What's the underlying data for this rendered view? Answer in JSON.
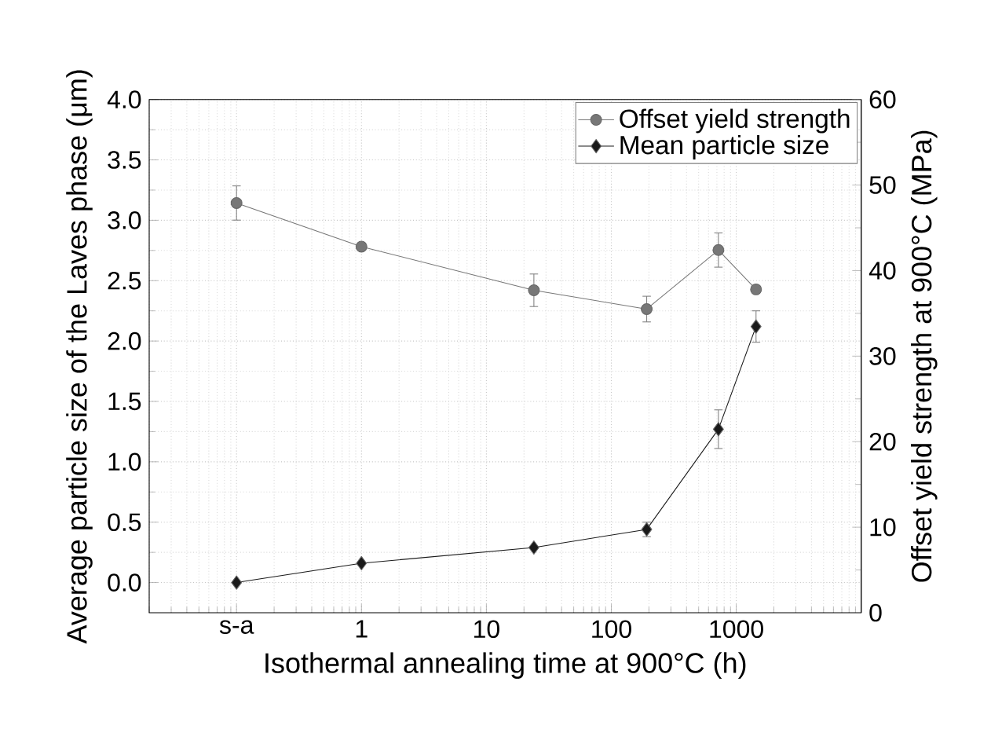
{
  "chart_data": {
    "type": "line",
    "xlabel": "Isothermal annealing time at 900°C (h)",
    "ylabel": "Average particle size of the Laves phase (μm)",
    "y2label": "Offset yield strength at 900°C (MPa)",
    "log": "x",
    "grid": true,
    "legend": "top right",
    "xlim": [
      0.02,
      10000
    ],
    "xticks": [
      {
        "value": 0.1,
        "label": "s-a"
      },
      1,
      10,
      100,
      1000
    ],
    "ylim": [
      -0.25,
      4.0
    ],
    "yticks": [
      {
        "value": 0,
        "label": "0.0"
      },
      0.5,
      {
        "value": 1,
        "label": "1.0"
      },
      1.5,
      {
        "value": 2,
        "label": "2.0"
      },
      2.5,
      {
        "value": 3,
        "label": "3.0"
      },
      3.5,
      {
        "value": 4,
        "label": "4.0"
      }
    ],
    "y2lim": [
      0,
      60
    ],
    "y2ticks": [
      0,
      10,
      20,
      30,
      40,
      50,
      60
    ],
    "series": [
      {
        "name": "Offset yield strength",
        "color": "#777777",
        "marker": "circle",
        "axis": "y2",
        "x": [
          0.1,
          1,
          24,
          192,
          720,
          1440
        ],
        "values": [
          47.9,
          42.8,
          37.7,
          35.5,
          42.4,
          37.8
        ],
        "errors": [
          2,
          null,
          1.9,
          1.5,
          2,
          null
        ]
      },
      {
        "name": "Mean particle size",
        "color": "#1a1a1a",
        "marker": "diamond",
        "x": [
          0.1,
          1,
          24,
          192,
          720,
          1440
        ],
        "values": [
          0.0,
          0.16,
          0.29,
          0.44,
          1.27,
          2.12
        ],
        "errors": [
          null,
          null,
          null,
          0.06,
          0.16,
          0.13
        ]
      }
    ]
  }
}
